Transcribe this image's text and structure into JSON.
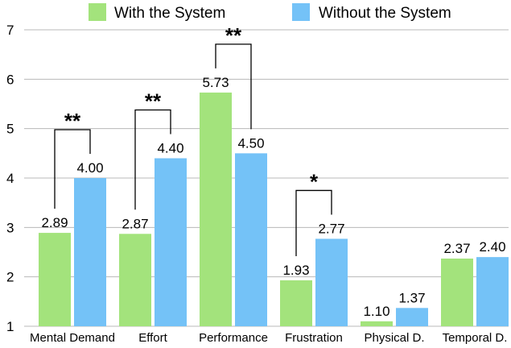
{
  "chart_data": {
    "type": "bar",
    "categories": [
      "Mental Demand",
      "Effort",
      "Performance",
      "Frustration",
      "Physical D.",
      "Temporal D."
    ],
    "series": [
      {
        "name": "With the System",
        "color": "#a3e37c",
        "values": [
          2.89,
          2.87,
          5.73,
          1.93,
          1.1,
          2.37
        ],
        "labels": [
          "2.89",
          "2.87",
          "5.73",
          "1.93",
          "1.10",
          "2.37"
        ]
      },
      {
        "name": "Without the System",
        "color": "#74c2f7",
        "values": [
          4.0,
          4.4,
          4.5,
          2.77,
          1.37,
          2.4
        ],
        "labels": [
          "4.00",
          "4.40",
          "4.50",
          "2.77",
          "1.37",
          "2.40"
        ]
      }
    ],
    "ylim": [
      1,
      7
    ],
    "yticks": [
      "1",
      "2",
      "3",
      "4",
      "5",
      "6",
      "7"
    ],
    "grid": true,
    "legend": "top-center",
    "significance": [
      {
        "category": "Mental Demand",
        "label": "**"
      },
      {
        "category": "Effort",
        "label": "**"
      },
      {
        "category": "Performance",
        "label": "**"
      },
      {
        "category": "Frustration",
        "label": "*"
      }
    ]
  }
}
